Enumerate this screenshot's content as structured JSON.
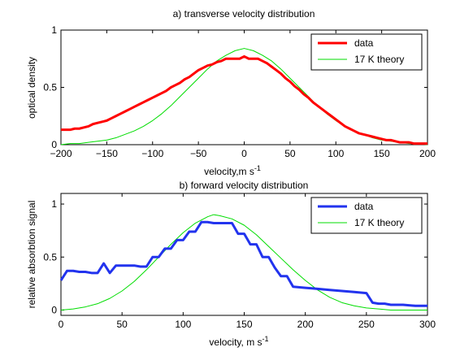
{
  "chart_data": [
    {
      "type": "line",
      "title": "a) transverse velocity distribution",
      "xlabel": "velocity,m s",
      "xlabel_sup": "-1",
      "ylabel": "optical density",
      "xlim": [
        -200,
        200
      ],
      "ylim": [
        0,
        1
      ],
      "xticks": [
        -200,
        -150,
        -100,
        -50,
        0,
        50,
        100,
        150,
        200
      ],
      "yticks": [
        0,
        0.5,
        1
      ],
      "xtick_labels": [
        "−200",
        "−150",
        "−100",
        "−50",
        "0",
        "50",
        "100",
        "150",
        "200"
      ],
      "ytick_labels": [
        "0",
        "0.5",
        "1"
      ],
      "legend_position": "top-right",
      "series": [
        {
          "name": "data",
          "color": "#ff0000",
          "style": "thick",
          "x": [
            -200,
            -195,
            -190,
            -185,
            -180,
            -175,
            -170,
            -165,
            -160,
            -155,
            -150,
            -145,
            -140,
            -135,
            -130,
            -125,
            -120,
            -115,
            -110,
            -105,
            -100,
            -95,
            -90,
            -85,
            -80,
            -75,
            -70,
            -65,
            -60,
            -55,
            -50,
            -45,
            -40,
            -35,
            -30,
            -25,
            -20,
            -15,
            -10,
            -5,
            0,
            5,
            10,
            15,
            20,
            25,
            30,
            35,
            40,
            45,
            50,
            55,
            60,
            65,
            70,
            75,
            80,
            85,
            90,
            95,
            100,
            105,
            110,
            115,
            120,
            125,
            130,
            135,
            140,
            145,
            150,
            155,
            160,
            165,
            170,
            175,
            180,
            185,
            190,
            195,
            200
          ],
          "y": [
            0.13,
            0.13,
            0.13,
            0.14,
            0.14,
            0.15,
            0.16,
            0.18,
            0.19,
            0.2,
            0.21,
            0.23,
            0.25,
            0.27,
            0.29,
            0.31,
            0.33,
            0.35,
            0.37,
            0.39,
            0.41,
            0.43,
            0.45,
            0.47,
            0.5,
            0.52,
            0.54,
            0.57,
            0.59,
            0.62,
            0.65,
            0.67,
            0.69,
            0.7,
            0.72,
            0.73,
            0.75,
            0.75,
            0.75,
            0.75,
            0.77,
            0.75,
            0.75,
            0.75,
            0.73,
            0.71,
            0.68,
            0.65,
            0.62,
            0.58,
            0.55,
            0.51,
            0.48,
            0.44,
            0.41,
            0.37,
            0.34,
            0.31,
            0.28,
            0.25,
            0.22,
            0.19,
            0.16,
            0.14,
            0.12,
            0.1,
            0.09,
            0.08,
            0.07,
            0.06,
            0.05,
            0.04,
            0.04,
            0.03,
            0.02,
            0.02,
            0.02,
            0.01,
            0.01,
            0.01,
            0.01
          ]
        },
        {
          "name": "17 K theory",
          "color": "#00dd00",
          "style": "thin",
          "x": [
            -200,
            -190,
            -180,
            -170,
            -160,
            -150,
            -140,
            -130,
            -120,
            -110,
            -100,
            -90,
            -80,
            -70,
            -60,
            -50,
            -40,
            -30,
            -20,
            -10,
            0,
            10,
            20,
            30,
            40,
            50,
            60,
            70,
            80,
            90,
            100,
            110,
            120,
            130,
            140,
            150,
            160,
            170,
            180,
            190,
            200
          ],
          "y": [
            0.0,
            0.01,
            0.01,
            0.02,
            0.03,
            0.04,
            0.06,
            0.09,
            0.12,
            0.16,
            0.21,
            0.27,
            0.34,
            0.42,
            0.5,
            0.58,
            0.66,
            0.73,
            0.78,
            0.82,
            0.84,
            0.82,
            0.78,
            0.73,
            0.66,
            0.58,
            0.5,
            0.42,
            0.34,
            0.27,
            0.21,
            0.16,
            0.12,
            0.09,
            0.06,
            0.04,
            0.03,
            0.02,
            0.01,
            0.01,
            0.0
          ]
        }
      ]
    },
    {
      "type": "line",
      "title": "b) forward velocity distribution",
      "xlabel": "velocity, m s",
      "xlabel_sup": "-1",
      "ylabel": "relative absorbtion signal",
      "xlim": [
        0,
        300
      ],
      "ylim": [
        -0.05,
        1.1
      ],
      "xticks": [
        0,
        50,
        100,
        150,
        200,
        250,
        300
      ],
      "yticks": [
        0,
        0.5,
        1
      ],
      "xtick_labels": [
        "0",
        "50",
        "100",
        "150",
        "200",
        "250",
        "300"
      ],
      "ytick_labels": [
        "0",
        "0.5",
        "1"
      ],
      "legend_position": "top-right",
      "series": [
        {
          "name": "data",
          "color": "#2233ee",
          "style": "thick",
          "x": [
            0,
            5,
            10,
            15,
            20,
            25,
            30,
            35,
            40,
            45,
            50,
            55,
            60,
            65,
            70,
            75,
            80,
            85,
            90,
            95,
            100,
            105,
            110,
            115,
            120,
            125,
            130,
            135,
            140,
            145,
            150,
            155,
            160,
            165,
            170,
            175,
            180,
            185,
            190,
            200,
            210,
            220,
            230,
            240,
            250,
            255,
            260,
            265,
            270,
            280,
            290,
            300
          ],
          "y": [
            0.28,
            0.37,
            0.37,
            0.36,
            0.36,
            0.35,
            0.35,
            0.44,
            0.35,
            0.42,
            0.42,
            0.42,
            0.42,
            0.41,
            0.41,
            0.5,
            0.5,
            0.58,
            0.58,
            0.66,
            0.66,
            0.74,
            0.74,
            0.83,
            0.83,
            0.82,
            0.82,
            0.82,
            0.82,
            0.72,
            0.72,
            0.62,
            0.62,
            0.5,
            0.5,
            0.4,
            0.32,
            0.32,
            0.22,
            0.21,
            0.2,
            0.19,
            0.18,
            0.17,
            0.16,
            0.07,
            0.06,
            0.06,
            0.05,
            0.05,
            0.04,
            0.04
          ]
        },
        {
          "name": "17 K theory",
          "color": "#00dd00",
          "style": "thin",
          "x": [
            0,
            10,
            20,
            30,
            40,
            50,
            60,
            70,
            80,
            90,
            100,
            110,
            120,
            125,
            130,
            140,
            150,
            160,
            170,
            180,
            190,
            200,
            210,
            220,
            230,
            240,
            250,
            260,
            270,
            280,
            290,
            300
          ],
          "y": [
            0.0,
            0.01,
            0.03,
            0.06,
            0.11,
            0.18,
            0.27,
            0.38,
            0.5,
            0.62,
            0.73,
            0.82,
            0.88,
            0.9,
            0.89,
            0.86,
            0.8,
            0.71,
            0.6,
            0.49,
            0.38,
            0.28,
            0.19,
            0.12,
            0.07,
            0.04,
            0.02,
            0.01,
            0.0,
            0.0,
            0.0,
            0.0
          ]
        }
      ]
    }
  ]
}
